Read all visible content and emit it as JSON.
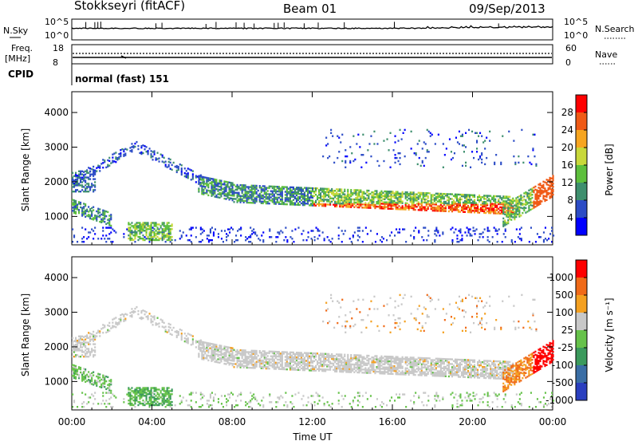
{
  "header": {
    "station": "Stokkseyri (fitACF)",
    "beam": "Beam 01",
    "date": "09/Sep/2013"
  },
  "status_panels": {
    "nsky_label": "N.Sky",
    "nsearch_label": "N.Search",
    "noise_ticks": [
      "10^5",
      "10^0"
    ],
    "freq_label": "Freq.",
    "freq_unit": "[MHz]",
    "freq_ticks": [
      "18",
      "8"
    ],
    "nave_label": "Nave",
    "nave_ticks": [
      "60",
      "0"
    ],
    "cpid_label": "CPID",
    "cpid_value": "normal (fast) 151"
  },
  "chart_data": [
    {
      "type": "heatmap",
      "name": "power",
      "ylabel": "Slant Range [km]",
      "yticks": [
        1000,
        2000,
        3000,
        4000
      ],
      "ylim": [
        180,
        4600
      ],
      "colorbar_label": "Power [dB]",
      "colorbar_ticks": [
        4,
        8,
        12,
        16,
        20,
        24,
        28
      ],
      "colorbar_range": [
        0,
        32
      ],
      "colorbar_colors": [
        "#0000ff",
        "#2c4cc6",
        "#3e8f6e",
        "#5dbf3c",
        "#c8d83a",
        "#f7a520",
        "#f05a16",
        "#ff0000"
      ]
    },
    {
      "type": "heatmap",
      "name": "velocity",
      "ylabel": "Slant Range [km]",
      "yticks": [
        1000,
        2000,
        3000,
        4000
      ],
      "ylim": [
        180,
        4600
      ],
      "colorbar_label": "Velocity [m s⁻¹]",
      "colorbar_ticks": [
        "1000",
        "500",
        "100",
        "25",
        "-25",
        "-100",
        "-500",
        "-1000"
      ],
      "colorbar_colors": [
        "#2a3fbf",
        "#3a6ea5",
        "#3b9a5c",
        "#66c24a",
        "#c8c8c8",
        "#f4a020",
        "#f06a18",
        "#ff0000"
      ]
    }
  ],
  "x_axis": {
    "label": "Time UT",
    "ticks": [
      "00:00",
      "04:00",
      "08:00",
      "12:00",
      "16:00",
      "20:00",
      "00:00"
    ],
    "range_hours": [
      0,
      24
    ]
  }
}
